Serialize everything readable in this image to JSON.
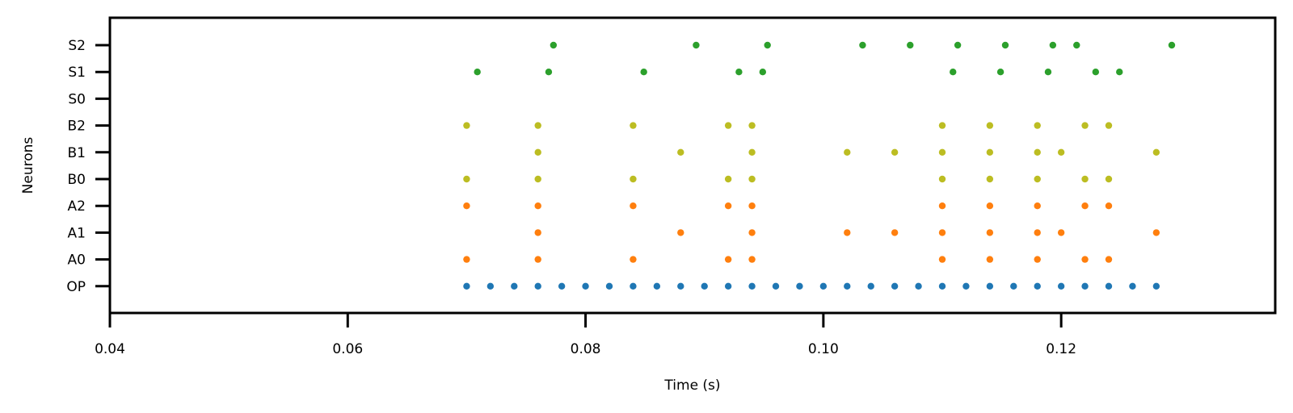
{
  "chart_data": {
    "type": "scatter",
    "title": "",
    "xlabel": "Time (s)",
    "ylabel": "Neurons",
    "xlim": [
      0.04,
      0.138
    ],
    "x_ticks": [
      0.04,
      0.06,
      0.08,
      0.1,
      0.12
    ],
    "x_tick_labels": [
      "0.04",
      "0.06",
      "0.08",
      "0.10",
      "0.12"
    ],
    "categories": [
      "OP",
      "A0",
      "A1",
      "A2",
      "B0",
      "B1",
      "B2",
      "S0",
      "S1",
      "S2"
    ],
    "grid": false,
    "legend": "none",
    "series": [
      {
        "neuron": "OP",
        "color": "#1f77b4",
        "x": [
          0.07,
          0.072,
          0.074,
          0.076,
          0.078,
          0.08,
          0.082,
          0.084,
          0.086,
          0.088,
          0.09,
          0.092,
          0.094,
          0.096,
          0.098,
          0.1,
          0.102,
          0.104,
          0.106,
          0.108,
          0.11,
          0.112,
          0.114,
          0.116,
          0.118,
          0.12,
          0.122,
          0.124,
          0.126,
          0.128
        ]
      },
      {
        "neuron": "A0",
        "color": "#ff7f0e",
        "x": [
          0.07,
          0.076,
          0.084,
          0.092,
          0.094,
          0.11,
          0.114,
          0.118,
          0.122,
          0.124
        ]
      },
      {
        "neuron": "A1",
        "color": "#ff7f0e",
        "x": [
          0.076,
          0.088,
          0.094,
          0.102,
          0.106,
          0.11,
          0.114,
          0.118,
          0.12,
          0.128
        ]
      },
      {
        "neuron": "A2",
        "color": "#ff7f0e",
        "x": [
          0.07,
          0.076,
          0.084,
          0.092,
          0.094,
          0.11,
          0.114,
          0.118,
          0.122,
          0.124
        ]
      },
      {
        "neuron": "B0",
        "color": "#bcbd22",
        "x": [
          0.07,
          0.076,
          0.084,
          0.092,
          0.094,
          0.11,
          0.114,
          0.118,
          0.122,
          0.124
        ]
      },
      {
        "neuron": "B1",
        "color": "#bcbd22",
        "x": [
          0.076,
          0.088,
          0.094,
          0.102,
          0.106,
          0.11,
          0.114,
          0.118,
          0.12,
          0.128
        ]
      },
      {
        "neuron": "B2",
        "color": "#bcbd22",
        "x": [
          0.07,
          0.076,
          0.084,
          0.092,
          0.094,
          0.11,
          0.114,
          0.118,
          0.122,
          0.124
        ]
      },
      {
        "neuron": "S0",
        "color": "#2ca02c",
        "x": []
      },
      {
        "neuron": "S1",
        "color": "#2ca02c",
        "x": [
          0.0709,
          0.0769,
          0.0849,
          0.0929,
          0.0949,
          0.1109,
          0.1149,
          0.1189,
          0.1229,
          0.1249
        ]
      },
      {
        "neuron": "S2",
        "color": "#2ca02c",
        "x": [
          0.0773,
          0.0893,
          0.0953,
          0.1033,
          0.1073,
          0.1113,
          0.1153,
          0.1193,
          0.1213,
          0.1293
        ]
      }
    ]
  }
}
